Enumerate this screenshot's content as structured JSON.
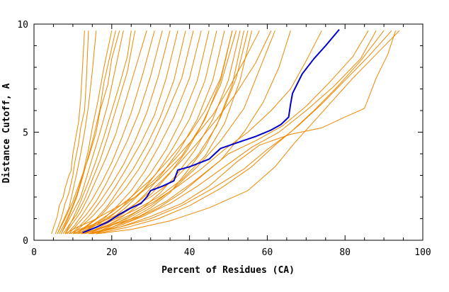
{
  "chart_data": {
    "type": "line",
    "xlabel": "Percent of Residues (CA)",
    "ylabel": "Distance Cutoff, A",
    "xlim": [
      0,
      100
    ],
    "ylim": [
      0,
      10
    ],
    "x_ticks": [
      "0",
      "20",
      "40",
      "60",
      "80",
      "100"
    ],
    "y_ticks": [
      "0",
      "5",
      "10"
    ],
    "grid": false,
    "colors": {
      "background_series": "#ee8800",
      "highlight_series": "#0000cc",
      "axes": "#000000"
    },
    "highlight_series": {
      "x": [
        12.5,
        16,
        19,
        22,
        25,
        27.5,
        29,
        30,
        33,
        36,
        37,
        40,
        45,
        48,
        52,
        57,
        61,
        63.5,
        65.5,
        66,
        66.5,
        69,
        72,
        75,
        78.5
      ],
      "y": [
        0.35,
        0.6,
        0.85,
        1.2,
        1.5,
        1.7,
        2.0,
        2.3,
        2.5,
        2.75,
        3.25,
        3.4,
        3.75,
        4.25,
        4.5,
        4.8,
        5.1,
        5.35,
        5.7,
        6.3,
        6.8,
        7.7,
        8.4,
        9.0,
        9.75
      ]
    },
    "series": [
      {
        "x": [
          4.5,
          6,
          6.5,
          7.5,
          8,
          9,
          9.5,
          10,
          10.5,
          11.5,
          12,
          13
        ],
        "y": [
          0.3,
          1.1,
          1.6,
          2.0,
          2.4,
          3.0,
          3.2,
          4.0,
          4.5,
          5.5,
          6.5,
          9.7
        ]
      },
      {
        "x": [
          5.5,
          7,
          8,
          9,
          10,
          10.5,
          11.5,
          12,
          13,
          13.5,
          14
        ],
        "y": [
          0.3,
          1.0,
          1.7,
          2.2,
          3.0,
          3.6,
          4.5,
          5.2,
          6.0,
          7.5,
          9.7
        ]
      },
      {
        "x": [
          6,
          7.5,
          9,
          10,
          11,
          12,
          13,
          14,
          15,
          16
        ],
        "y": [
          0.3,
          0.9,
          1.5,
          2.3,
          3.1,
          4.0,
          5.0,
          6.2,
          7.8,
          9.7
        ]
      },
      {
        "x": [
          6.5,
          8,
          9.5,
          11,
          12.5,
          14,
          15,
          16.5,
          18,
          20
        ],
        "y": [
          0.3,
          0.8,
          1.4,
          2.1,
          3.0,
          4.2,
          5.2,
          6.5,
          8.0,
          9.7
        ]
      },
      {
        "x": [
          7,
          8.5,
          10,
          12,
          13.5,
          15,
          17,
          19,
          21,
          23
        ],
        "y": [
          0.3,
          0.8,
          1.3,
          2.0,
          2.9,
          3.8,
          5.0,
          6.3,
          8.0,
          9.7
        ]
      },
      {
        "x": [
          7.5,
          9,
          11,
          13,
          15,
          17,
          19,
          21,
          24,
          26
        ],
        "y": [
          0.3,
          0.7,
          1.2,
          1.9,
          2.8,
          3.7,
          4.8,
          6.0,
          7.8,
          9.7
        ]
      },
      {
        "x": [
          8,
          10,
          12,
          14,
          16,
          18.5,
          21,
          23,
          26,
          29
        ],
        "y": [
          0.3,
          0.8,
          1.3,
          2.0,
          2.8,
          3.8,
          4.9,
          6.1,
          7.9,
          9.7
        ]
      },
      {
        "x": [
          8.5,
          10.5,
          12.5,
          15,
          17.5,
          20,
          22.5,
          25,
          28,
          31
        ],
        "y": [
          0.3,
          0.7,
          1.2,
          1.9,
          2.7,
          3.6,
          4.7,
          5.9,
          7.7,
          9.7
        ]
      },
      {
        "x": [
          9,
          11,
          13.5,
          16,
          18.5,
          21,
          24,
          27,
          30,
          33
        ],
        "y": [
          0.3,
          0.7,
          1.2,
          1.8,
          2.6,
          3.5,
          4.6,
          5.9,
          7.6,
          9.7
        ]
      },
      {
        "x": [
          9.5,
          12,
          14.5,
          17,
          20,
          23,
          26,
          29,
          32,
          35
        ],
        "y": [
          0.3,
          0.7,
          1.2,
          1.8,
          2.6,
          3.5,
          4.6,
          5.9,
          7.6,
          9.7
        ]
      },
      {
        "x": [
          10,
          12.5,
          15,
          18,
          21,
          24,
          27.5,
          31,
          34,
          37
        ],
        "y": [
          0.3,
          0.7,
          1.1,
          1.7,
          2.5,
          3.4,
          4.5,
          5.8,
          7.5,
          9.7
        ]
      },
      {
        "x": [
          10.5,
          13,
          16,
          19,
          22,
          25.5,
          29,
          32.5,
          36,
          39
        ],
        "y": [
          0.3,
          0.6,
          1.0,
          1.6,
          2.4,
          3.3,
          4.4,
          5.7,
          7.4,
          9.7
        ]
      },
      {
        "x": [
          11,
          14,
          17,
          20,
          23.5,
          27,
          30.5,
          34,
          38,
          41
        ],
        "y": [
          0.3,
          0.7,
          1.1,
          1.7,
          2.4,
          3.3,
          4.4,
          5.8,
          7.5,
          9.7
        ]
      },
      {
        "x": [
          11.5,
          14.5,
          18,
          21.5,
          25,
          28.5,
          32,
          36,
          40,
          43
        ],
        "y": [
          0.3,
          0.6,
          1.0,
          1.6,
          2.3,
          3.2,
          4.3,
          5.7,
          7.5,
          9.7
        ]
      },
      {
        "x": [
          12,
          15,
          19,
          22.5,
          26,
          30,
          34,
          38,
          42,
          45
        ],
        "y": [
          0.3,
          0.6,
          1.0,
          1.5,
          2.2,
          3.1,
          4.2,
          5.6,
          7.4,
          9.7
        ]
      },
      {
        "x": [
          12.5,
          16,
          20,
          23.5,
          27.5,
          31.5,
          35.5,
          40,
          44,
          47
        ],
        "y": [
          0.3,
          0.6,
          1.0,
          1.5,
          2.2,
          3.1,
          4.2,
          5.6,
          7.4,
          9.7
        ]
      },
      {
        "x": [
          13,
          17,
          21,
          25,
          29,
          33,
          37.5,
          42,
          46,
          49
        ],
        "y": [
          0.3,
          0.6,
          1.0,
          1.5,
          2.2,
          3.1,
          4.2,
          5.6,
          7.4,
          9.7
        ]
      },
      {
        "x": [
          14,
          18,
          22,
          26,
          30.5,
          35,
          39.5,
          44,
          48,
          51
        ],
        "y": [
          0.3,
          0.6,
          1.0,
          1.5,
          2.2,
          3.1,
          4.2,
          5.6,
          7.4,
          9.7
        ]
      },
      {
        "x": [
          15,
          19,
          23.5,
          28,
          32.5,
          37,
          41.5,
          46,
          50,
          53
        ],
        "y": [
          0.3,
          0.6,
          1.0,
          1.5,
          2.2,
          3.1,
          4.2,
          5.6,
          7.4,
          9.7
        ]
      },
      {
        "x": [
          16,
          20,
          25,
          30,
          35,
          39,
          44,
          48,
          52,
          55
        ],
        "y": [
          0.3,
          0.6,
          1.0,
          1.5,
          2.2,
          3.1,
          4.3,
          5.7,
          7.5,
          9.7
        ]
      },
      {
        "x": [
          8,
          11,
          15,
          20,
          26,
          32,
          38,
          43,
          48,
          52
        ],
        "y": [
          0.3,
          0.6,
          0.9,
          1.4,
          2.0,
          2.8,
          3.9,
          5.3,
          7.2,
          9.7
        ]
      },
      {
        "x": [
          9,
          13,
          18,
          24,
          30,
          36,
          42,
          47,
          51,
          54
        ],
        "y": [
          0.3,
          0.6,
          0.9,
          1.4,
          2.0,
          2.8,
          3.9,
          5.3,
          7.2,
          9.7
        ]
      },
      {
        "x": [
          10,
          14,
          20,
          26,
          32,
          38,
          44,
          49,
          53,
          56
        ],
        "y": [
          0.3,
          0.6,
          0.9,
          1.4,
          2.0,
          2.8,
          3.9,
          5.4,
          7.4,
          9.7
        ]
      },
      {
        "x": [
          6,
          8,
          10,
          12,
          14,
          16,
          17,
          19,
          20,
          22
        ],
        "y": [
          0.3,
          1.0,
          1.8,
          2.8,
          3.8,
          5.0,
          6.0,
          7.2,
          8.4,
          9.7
        ]
      },
      {
        "x": [
          7,
          9,
          11,
          12.5,
          14,
          15.5,
          17,
          18,
          19.5,
          21
        ],
        "y": [
          0.3,
          1.1,
          2.0,
          2.9,
          3.9,
          4.9,
          6.1,
          7.3,
          8.5,
          9.7
        ]
      },
      {
        "x": [
          8,
          10,
          12,
          14,
          16,
          18,
          20,
          22,
          24,
          25
        ],
        "y": [
          0.3,
          1.0,
          1.8,
          2.7,
          3.7,
          4.8,
          6.0,
          7.2,
          8.5,
          9.7
        ]
      },
      {
        "x": [
          12,
          18,
          24,
          30,
          36,
          42,
          48,
          54,
          58,
          62
        ],
        "y": [
          0.3,
          0.6,
          1.0,
          1.6,
          2.4,
          3.4,
          4.6,
          6.1,
          7.9,
          9.7
        ]
      },
      {
        "x": [
          13,
          20,
          27,
          34,
          41,
          48,
          54,
          59,
          63,
          66
        ],
        "y": [
          0.3,
          0.7,
          1.1,
          1.8,
          2.7,
          3.7,
          5.0,
          6.4,
          8.0,
          9.7
        ]
      },
      {
        "x": [
          14,
          20,
          26,
          32,
          38,
          44,
          50,
          57,
          64,
          70,
          76,
          82,
          86
        ],
        "y": [
          0.3,
          0.6,
          1.0,
          1.5,
          2.2,
          3.1,
          4.0,
          4.6,
          5.3,
          6.2,
          7.3,
          8.5,
          9.7
        ]
      },
      {
        "x": [
          14.5,
          21,
          28,
          35,
          42,
          49,
          56,
          63,
          70,
          77,
          84,
          88
        ],
        "y": [
          0.3,
          0.6,
          1.1,
          1.7,
          2.5,
          3.4,
          4.3,
          5.0,
          6.0,
          7.1,
          8.4,
          9.7
        ]
      },
      {
        "x": [
          15,
          22,
          30,
          38,
          46,
          54,
          60,
          66,
          72,
          78,
          84,
          90
        ],
        "y": [
          0.3,
          0.6,
          1.0,
          1.6,
          2.4,
          3.3,
          4.2,
          5.0,
          6.0,
          7.1,
          8.3,
          9.7
        ]
      },
      {
        "x": [
          16,
          24,
          32,
          40,
          48,
          56,
          62,
          68,
          74,
          80,
          86,
          92
        ],
        "y": [
          0.3,
          0.6,
          1.0,
          1.6,
          2.4,
          3.4,
          4.4,
          5.3,
          6.3,
          7.4,
          8.5,
          9.7
        ]
      },
      {
        "x": [
          16,
          25,
          35,
          45,
          55,
          62,
          67,
          72,
          77,
          82,
          88,
          94
        ],
        "y": [
          0.3,
          0.5,
          0.9,
          1.5,
          2.3,
          3.4,
          4.5,
          5.5,
          6.5,
          7.5,
          8.6,
          9.7
        ]
      },
      {
        "x": [
          14,
          22,
          30,
          38,
          45,
          52,
          58,
          66,
          74,
          80,
          85,
          88,
          91,
          93
        ],
        "y": [
          0.3,
          0.6,
          1.1,
          1.7,
          2.5,
          3.6,
          4.4,
          4.9,
          5.2,
          5.7,
          6.1,
          7.5,
          8.6,
          9.7
        ]
      },
      {
        "x": [
          13,
          19,
          25,
          31,
          37,
          43,
          49,
          55,
          61,
          66,
          70,
          74
        ],
        "y": [
          0.3,
          0.7,
          1.2,
          1.8,
          2.5,
          3.3,
          4.2,
          5.0,
          6.0,
          7.0,
          8.3,
          9.7
        ]
      },
      {
        "x": [
          12,
          17,
          22,
          27,
          32,
          37,
          42,
          47,
          52,
          57,
          61
        ],
        "y": [
          0.3,
          0.7,
          1.2,
          1.8,
          2.6,
          3.5,
          4.5,
          5.6,
          6.8,
          8.2,
          9.7
        ]
      },
      {
        "x": [
          11,
          16,
          21,
          26,
          31,
          36,
          41,
          46,
          50,
          54,
          58
        ],
        "y": [
          0.3,
          0.7,
          1.3,
          2.0,
          2.8,
          3.7,
          4.7,
          5.8,
          7.0,
          8.3,
          9.7
        ]
      },
      {
        "x": [
          10,
          15,
          20,
          25,
          30,
          35,
          40,
          44,
          48,
          51
        ],
        "y": [
          0.3,
          0.7,
          1.3,
          2.0,
          2.8,
          3.8,
          4.9,
          6.0,
          7.5,
          9.7
        ]
      }
    ]
  }
}
